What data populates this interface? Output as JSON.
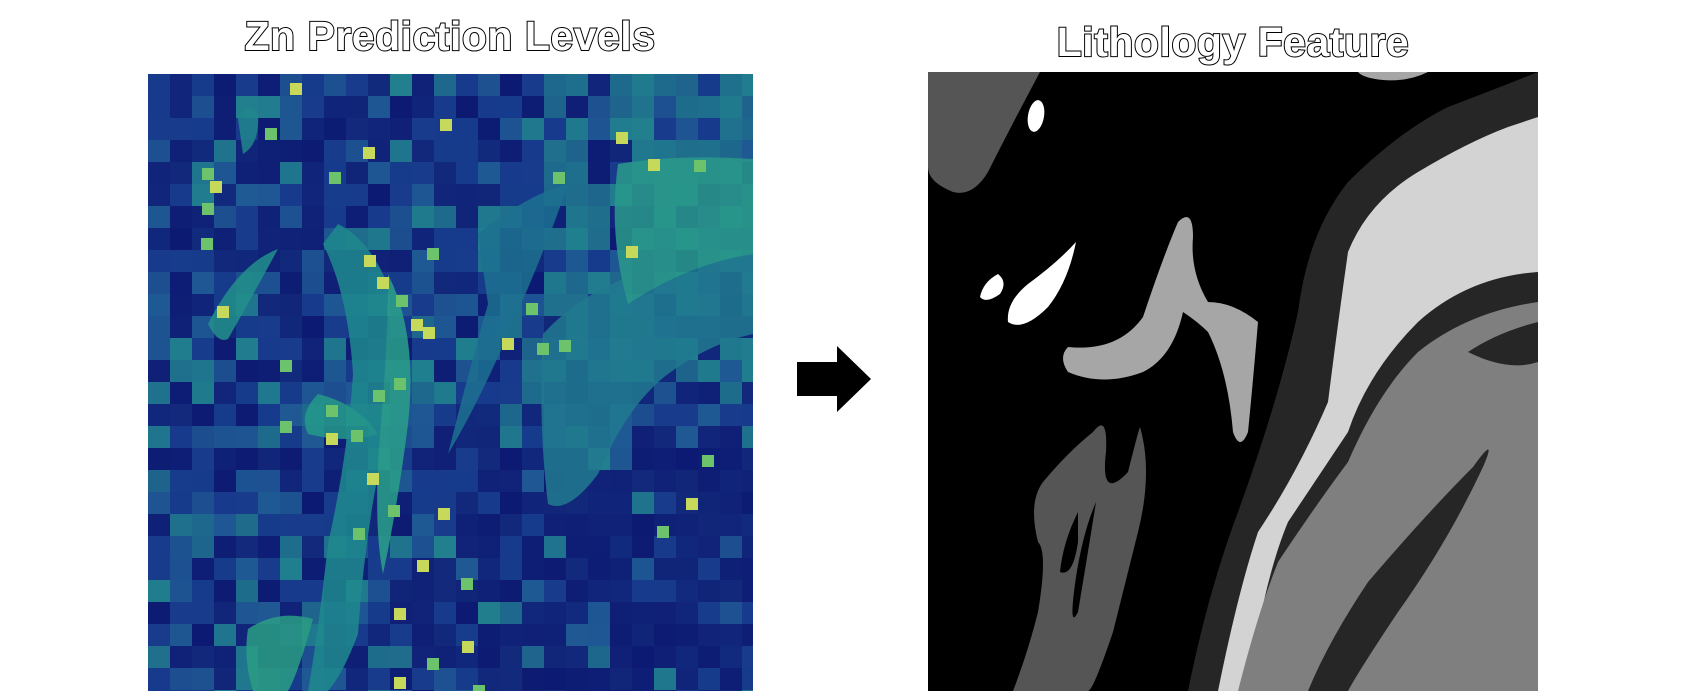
{
  "left_panel": {
    "title": "Zn Prediction Levels",
    "colormap": [
      "#0d1a72",
      "#173a8c",
      "#1f5a94",
      "#21818e",
      "#27a383",
      "#6cc36b",
      "#c6d95a"
    ]
  },
  "right_panel": {
    "title": "Lithology Feature",
    "gray_levels": [
      "#000000",
      "#262626",
      "#555555",
      "#7f7f7f",
      "#a6a6a6",
      "#d3d3d3",
      "#ffffff"
    ]
  },
  "connector": {
    "icon": "right-arrow-icon",
    "color": "#000000"
  }
}
